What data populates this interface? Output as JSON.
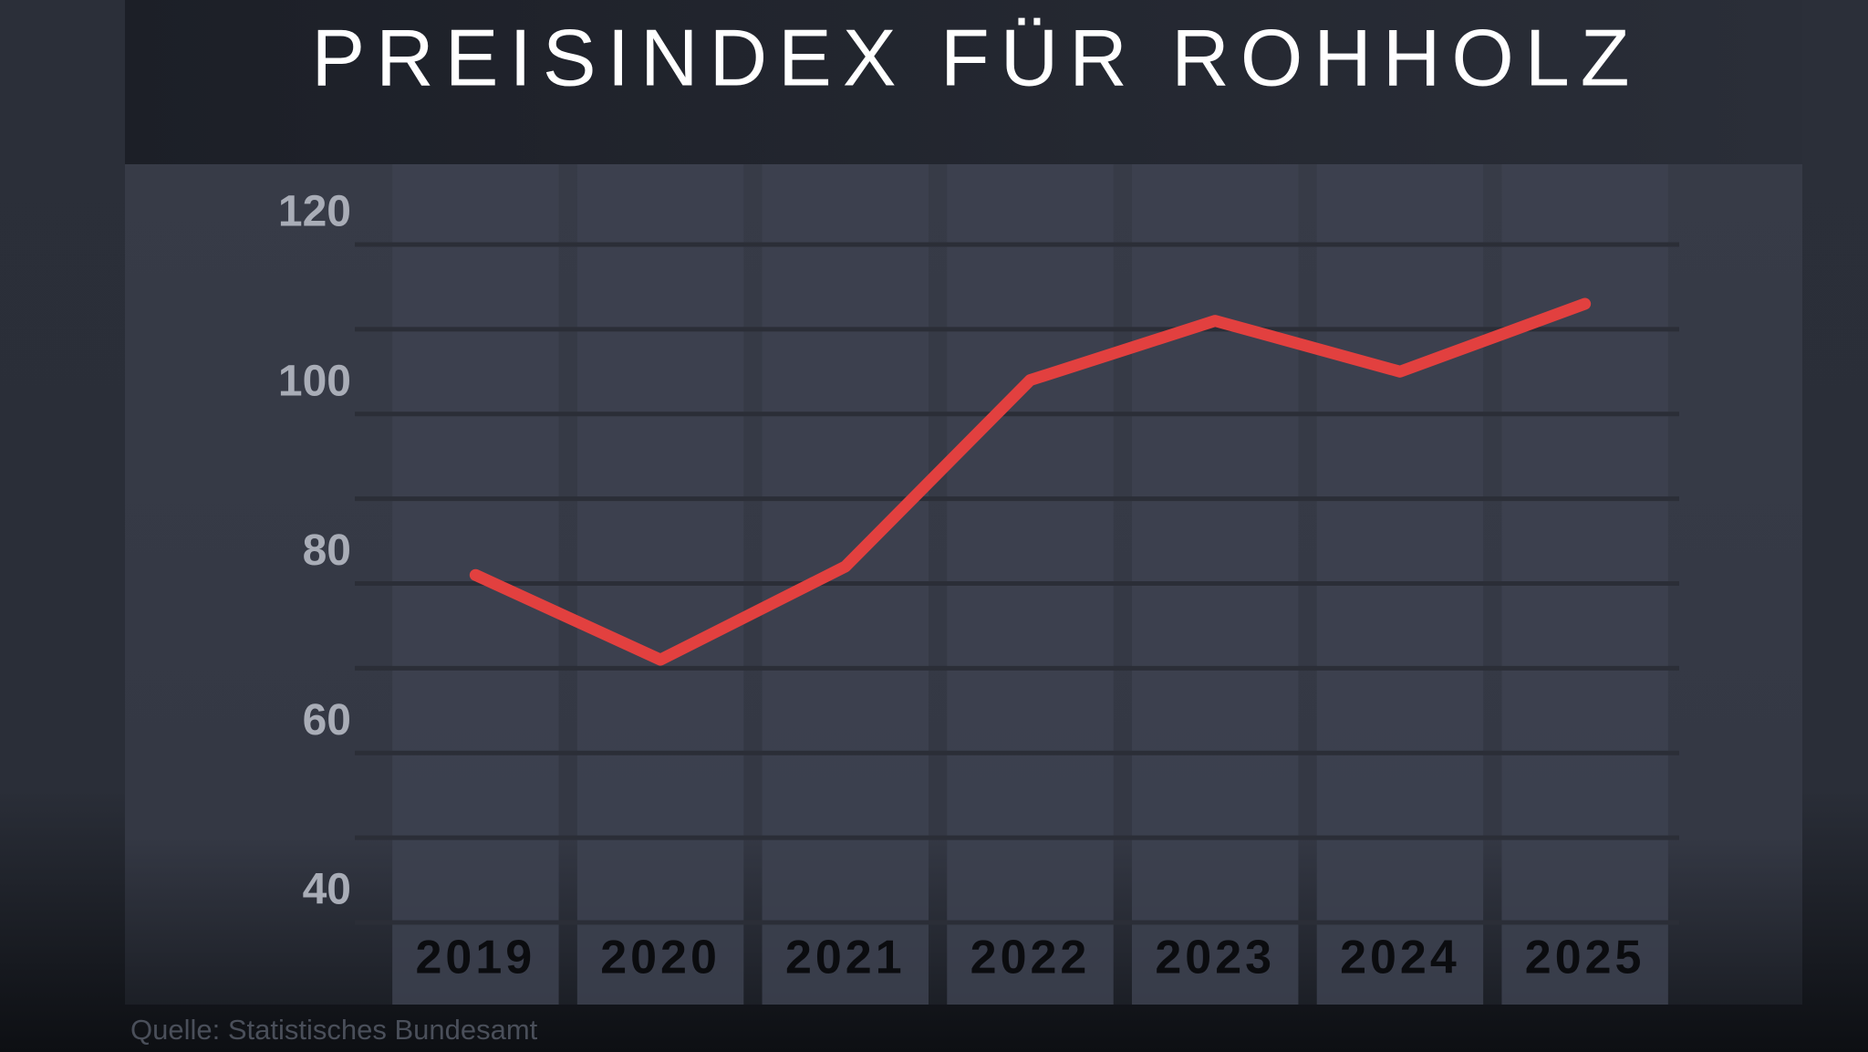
{
  "chart_data": {
    "type": "line",
    "title": "PREISINDEX FÜR ROHHOLZ",
    "categories": [
      "2019",
      "2020",
      "2021",
      "2022",
      "2023",
      "2024",
      "2025"
    ],
    "values": [
      81,
      71,
      82,
      104,
      111,
      105,
      113
    ],
    "color": "#e2403f",
    "ylim": [
      40,
      120
    ],
    "yticks": [
      40,
      60,
      80,
      100,
      120
    ],
    "yminor_ticks": [
      50,
      70,
      90,
      110
    ],
    "grid": true,
    "source": "Quelle: Statistisches Bundesamt"
  }
}
